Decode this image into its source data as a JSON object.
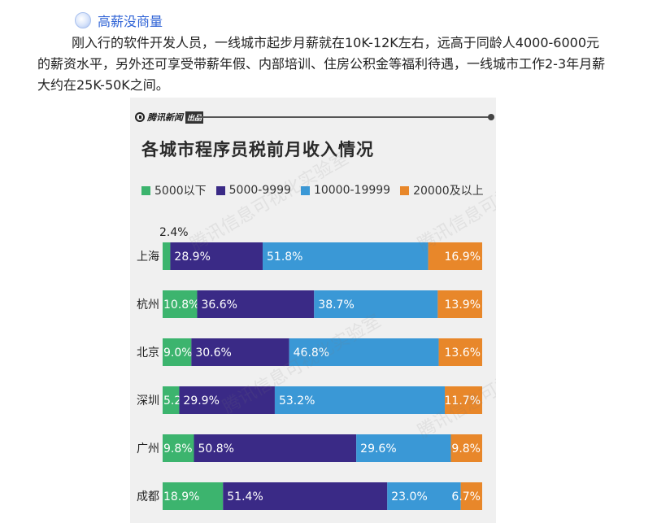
{
  "heading": {
    "text": "高薪没商量",
    "icon": "circle-bullet-icon"
  },
  "paragraph": "刚入行的软件开发人员，一线城市起步月薪就在10K-12K左右，远高于同龄人4000-6000元的薪资水平，另外还可享受带薪年假、内部培训、住房公积金等福利待遇，一线城市工作2-3年月薪大约在25K-50K之间。",
  "source": {
    "name": "腾讯新闻",
    "badge": "出品"
  },
  "watermark_text": "腾讯信息可视化实验室",
  "colors": {
    "s1": "#3cb46e",
    "s2": "#3a2a86",
    "s3": "#3a98d6",
    "s4": "#e8872a"
  },
  "chart_data": {
    "type": "bar",
    "orientation": "horizontal",
    "stacked": true,
    "title": "各城市程序员税前月收入情况",
    "categories": [
      "上海",
      "杭州",
      "北京",
      "深圳",
      "广州",
      "成都"
    ],
    "series": [
      {
        "name": "5000以下",
        "values": [
          2.4,
          10.8,
          9.0,
          5.2,
          9.8,
          18.9
        ],
        "labels": [
          "2.4%",
          "10.8%",
          "9.0%",
          "5.2%",
          "9.8%",
          "18.9%"
        ]
      },
      {
        "name": "5000-9999",
        "values": [
          28.9,
          36.6,
          30.6,
          29.9,
          50.8,
          51.4
        ],
        "labels": [
          "28.9%",
          "36.6%",
          "30.6%",
          "29.9%",
          "50.8%",
          "51.4%"
        ]
      },
      {
        "name": "10000-19999",
        "values": [
          51.8,
          38.7,
          46.8,
          53.2,
          29.6,
          23.0
        ],
        "labels": [
          "51.8%",
          "38.7%",
          "46.8%",
          "53.2%",
          "29.6%",
          "23.0%"
        ]
      },
      {
        "name": "20000及以上",
        "values": [
          16.9,
          13.9,
          13.6,
          11.7,
          9.8,
          6.7
        ],
        "labels": [
          "16.9%",
          "13.9%",
          "13.6%",
          "11.7%",
          "9.8%",
          "6.7%"
        ]
      }
    ],
    "xlim": [
      0,
      100
    ],
    "unit": "%",
    "legend_position": "top"
  }
}
